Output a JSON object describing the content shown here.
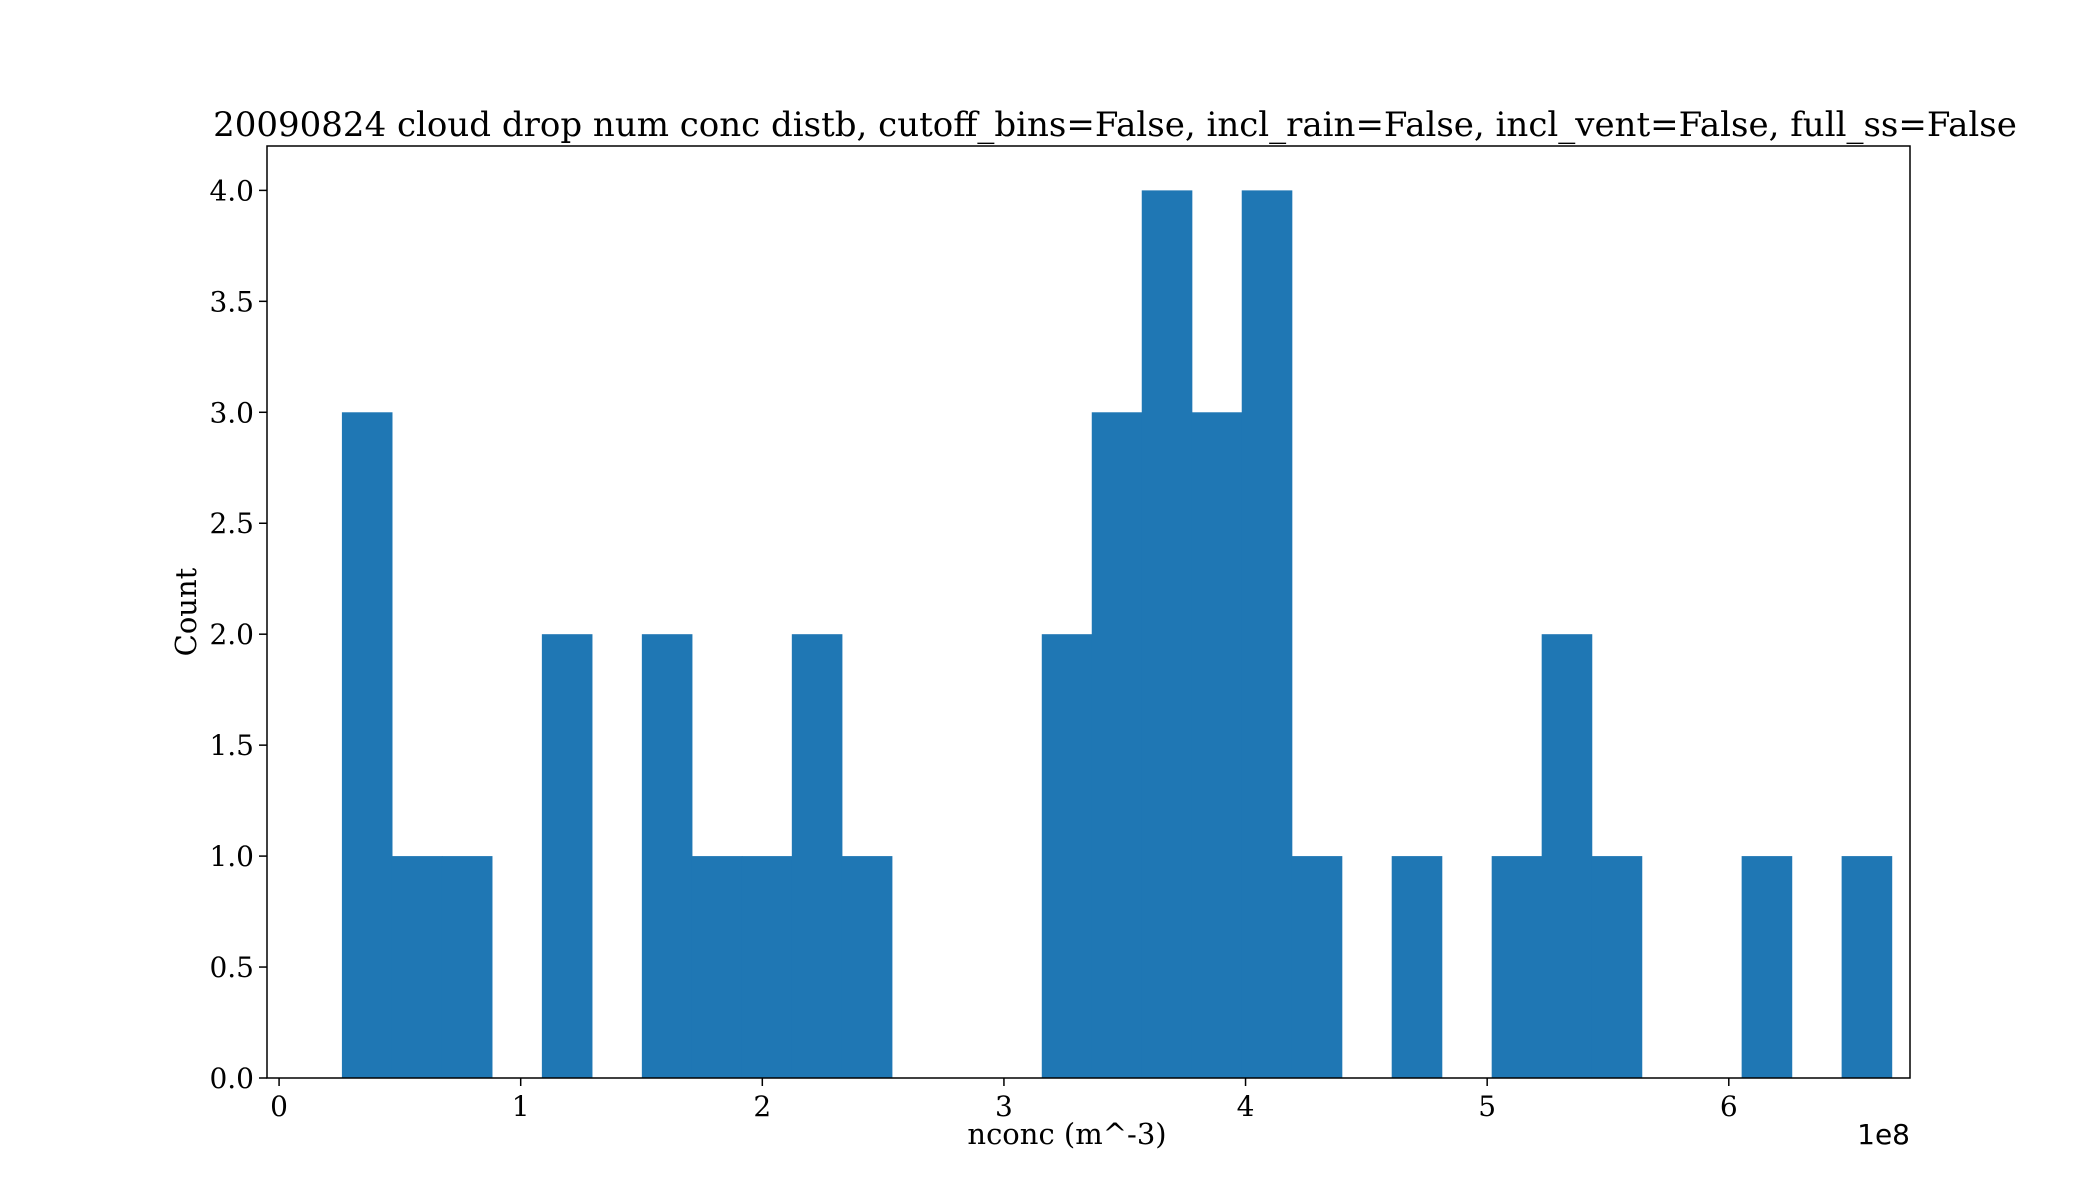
{
  "chart_data": {
    "type": "bar",
    "title": "20090824 cloud drop num conc distb, cutoff_bins=False, incl_rain=False, incl_vent=False, full_ss=False",
    "xlabel": "nconc (m^-3)",
    "ylabel": "Count",
    "x_offset_label": "1e8",
    "xlim": [
      -0.05,
      6.75
    ],
    "ylim": [
      0,
      4.2
    ],
    "x_ticks": [
      0,
      1,
      2,
      3,
      4,
      5,
      6
    ],
    "x_tick_labels": [
      "0",
      "1",
      "2",
      "3",
      "4",
      "5",
      "6"
    ],
    "y_ticks": [
      0,
      0.5,
      1.0,
      1.5,
      2.0,
      2.5,
      3.0,
      3.5,
      4.0
    ],
    "y_tick_labels": [
      "0.0",
      "0.5",
      "1.0",
      "1.5",
      "2.0",
      "2.5",
      "3.0",
      "3.5",
      "4.0"
    ],
    "grid": false,
    "bin_start": 0.26,
    "bin_width": 0.2069,
    "values": [
      3,
      1,
      1,
      0,
      2,
      0,
      2,
      1,
      1,
      2,
      1,
      0,
      0,
      0,
      2,
      3,
      4,
      3,
      4,
      1,
      0,
      1,
      0,
      1,
      2,
      1,
      0,
      0,
      1,
      0,
      1
    ],
    "colors": {
      "bar": "#1f77b4",
      "axis": "#000000",
      "background": "#ffffff"
    }
  }
}
